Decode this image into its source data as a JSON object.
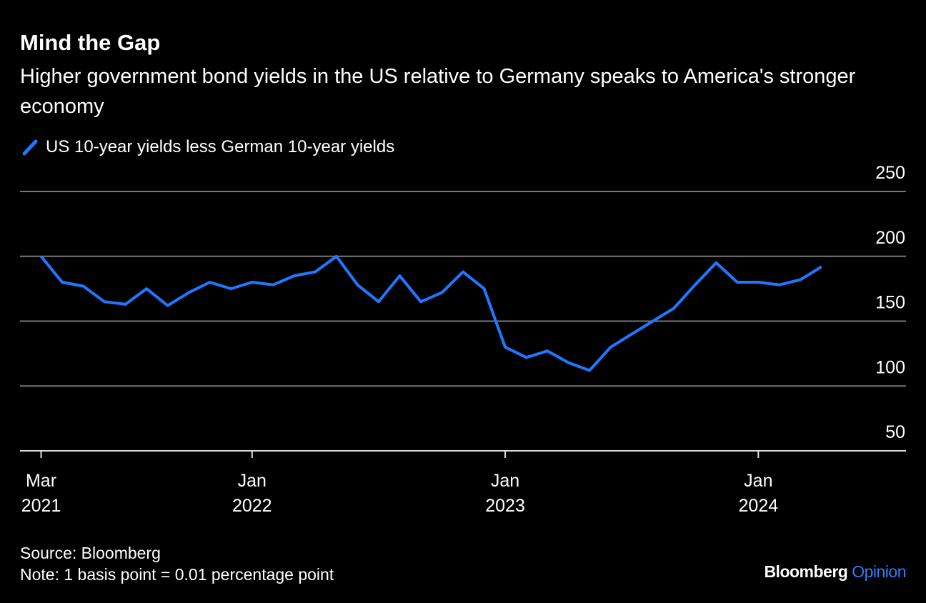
{
  "chart_data": {
    "type": "line",
    "title": "Mind the Gap",
    "subtitle": "Higher government bond yields in the US relative to Germany speaks to America's stronger economy",
    "x": [
      "2021-03",
      "2021-04",
      "2021-05",
      "2021-06",
      "2021-07",
      "2021-08",
      "2021-09",
      "2021-10",
      "2021-11",
      "2021-12",
      "2022-01",
      "2022-02",
      "2022-03",
      "2022-04",
      "2022-05",
      "2022-06",
      "2022-07",
      "2022-08",
      "2022-09",
      "2022-10",
      "2022-11",
      "2022-12",
      "2023-01",
      "2023-02",
      "2023-03",
      "2023-04",
      "2023-05",
      "2023-06",
      "2023-07",
      "2023-08",
      "2023-09",
      "2023-10",
      "2023-11",
      "2023-12",
      "2024-01",
      "2024-02",
      "2024-03",
      "2024-04"
    ],
    "series": [
      {
        "name": "US 10-year yields less German 10-year yields",
        "color": "#1f78ff",
        "values": [
          200,
          180,
          177,
          165,
          163,
          175,
          162,
          172,
          180,
          175,
          180,
          178,
          185,
          188,
          200,
          178,
          165,
          185,
          165,
          172,
          188,
          175,
          130,
          122,
          127,
          118,
          112,
          130,
          140,
          150,
          160,
          178,
          195,
          180,
          180,
          178,
          182,
          192
        ]
      }
    ],
    "xlim": [
      "2021-02",
      "2024-08"
    ],
    "xticks": [
      {
        "value": "2021-03",
        "label": "Mar 2021"
      },
      {
        "value": "2022-01",
        "label": "Jan 2022"
      },
      {
        "value": "2023-01",
        "label": "Jan 2023"
      },
      {
        "value": "2024-01",
        "label": "Jan 2024"
      }
    ],
    "ylim": [
      50,
      250
    ],
    "yticks": [
      50,
      100,
      150,
      200,
      250
    ],
    "grid": true,
    "source": "Source: Bloomberg",
    "note": "Note: 1 basis point = 0.01 percentage point",
    "brand": "Bloomberg",
    "brand_suffix": "Opinion"
  }
}
